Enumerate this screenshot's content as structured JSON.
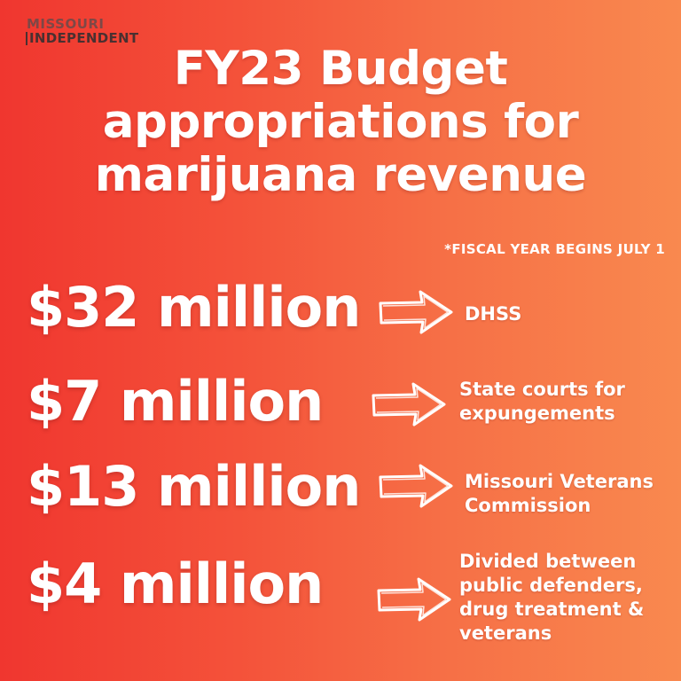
{
  "logo": {
    "line1": "MISSOURI",
    "line2": "INDEPENDENT"
  },
  "title": {
    "line1": "FY23 Budget",
    "line2": "appropriations for",
    "line3": "marijuana revenue"
  },
  "note": "*FISCAL YEAR BEGINS JULY 1",
  "allocations": [
    {
      "amount": "$32 million",
      "recipient": [
        "DHSS"
      ]
    },
    {
      "amount": "$7 million",
      "recipient": [
        "State courts for",
        "expungements"
      ]
    },
    {
      "amount": "$13 million",
      "recipient": [
        "Missouri Veterans",
        "Commission"
      ]
    },
    {
      "amount": "$4 million",
      "recipient": [
        "Divided between",
        "public defenders,",
        "drug treatment &",
        "veterans"
      ]
    }
  ],
  "colors": {
    "gradient_left": "#f0362f",
    "gradient_right": "#f9894f",
    "text": "#ffffff"
  },
  "icons": {
    "arrow": "hand-drawn-right-arrow-icon"
  }
}
